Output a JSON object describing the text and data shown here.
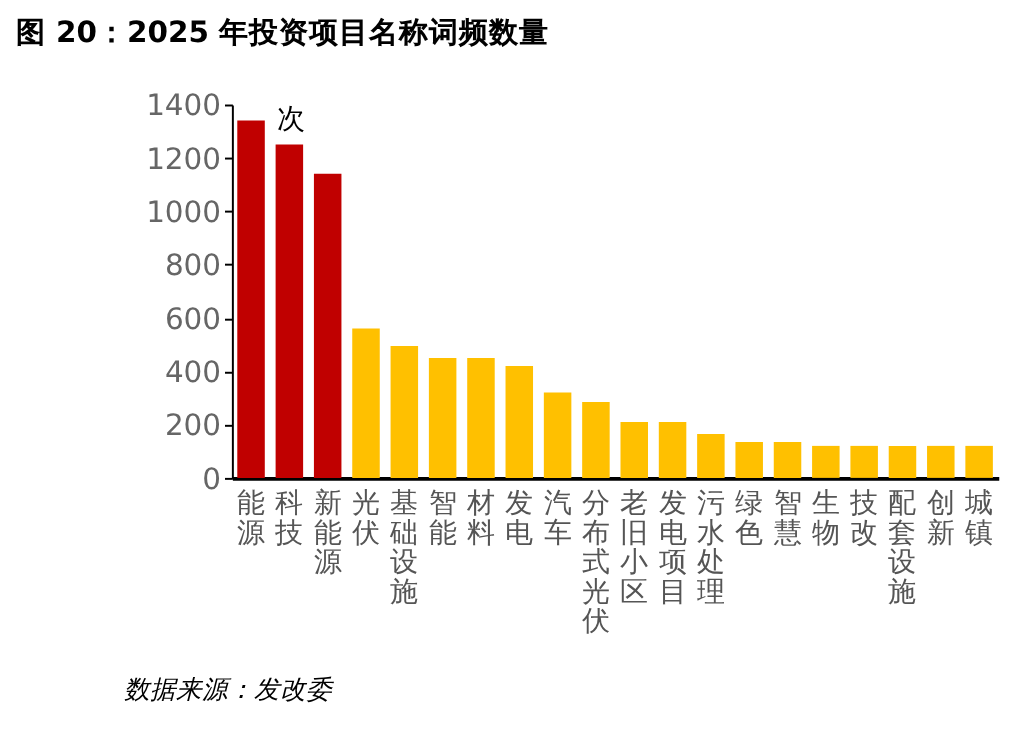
{
  "chart_data": {
    "type": "bar",
    "title": "图 20：2025 年投资项目名称词频数量",
    "ylabel": "次",
    "categories": [
      "能源",
      "科技",
      "新能源",
      "光伏",
      "基础设施",
      "智能",
      "材料",
      "发电",
      "汽车",
      "分布式光伏",
      "老旧小区",
      "发电项目",
      "污水处理",
      "绿色",
      "智慧",
      "生物",
      "技改",
      "配套设施",
      "创新",
      "城镇"
    ],
    "values": [
      1340,
      1250,
      1140,
      560,
      495,
      450,
      450,
      420,
      320,
      285,
      210,
      210,
      165,
      135,
      135,
      120,
      120,
      120,
      120,
      120
    ],
    "colors": [
      "#c00000",
      "#c00000",
      "#c00000",
      "#ffc000",
      "#ffc000",
      "#ffc000",
      "#ffc000",
      "#ffc000",
      "#ffc000",
      "#ffc000",
      "#ffc000",
      "#ffc000",
      "#ffc000",
      "#ffc000",
      "#ffc000",
      "#ffc000",
      "#ffc000",
      "#ffc000",
      "#ffc000",
      "#ffc000"
    ],
    "ylim": [
      0,
      1400
    ],
    "yticks": [
      0,
      200,
      400,
      600,
      800,
      1000,
      1200,
      1400
    ],
    "grid": false,
    "annotations": [
      "数据来源：发改委"
    ]
  }
}
